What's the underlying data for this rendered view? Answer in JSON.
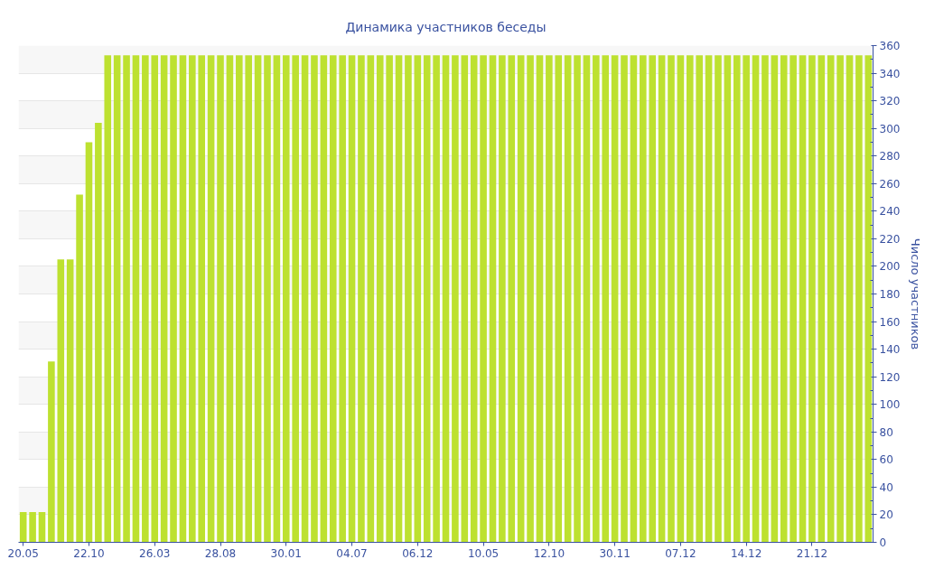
{
  "chart_data": {
    "type": "bar",
    "title": "Динамика участников беседы",
    "ylabel": "Число участников",
    "categories": [
      "20.05",
      null,
      null,
      null,
      null,
      null,
      null,
      "22.10",
      null,
      null,
      null,
      null,
      null,
      null,
      "26.03",
      null,
      null,
      null,
      null,
      null,
      null,
      "28.08",
      null,
      null,
      null,
      null,
      null,
      null,
      "30.01",
      null,
      null,
      null,
      null,
      null,
      null,
      "04.07",
      null,
      null,
      null,
      null,
      null,
      null,
      "06.12",
      null,
      null,
      null,
      null,
      null,
      null,
      "10.05",
      null,
      null,
      null,
      null,
      null,
      null,
      "12.10",
      null,
      null,
      null,
      null,
      null,
      null,
      "30.11",
      null,
      null,
      null,
      null,
      null,
      null,
      "07.12",
      null,
      null,
      null,
      null,
      null,
      null,
      "14.12",
      null,
      null,
      null,
      null,
      null,
      null,
      "21.12",
      null,
      null,
      null,
      null,
      null,
      null
    ],
    "values": [
      22,
      22,
      22,
      131,
      205,
      205,
      252,
      290,
      304,
      353,
      353,
      353,
      353,
      353,
      353,
      353,
      353,
      353,
      353,
      353,
      353,
      353,
      353,
      353,
      353,
      353,
      353,
      353,
      353,
      353,
      353,
      353,
      353,
      353,
      353,
      353,
      353,
      353,
      353,
      353,
      353,
      353,
      353,
      353,
      353,
      353,
      353,
      353,
      353,
      353,
      353,
      353,
      353,
      353,
      353,
      353,
      353,
      353,
      353,
      353,
      353,
      353,
      353,
      353,
      353,
      353,
      353,
      353,
      353,
      353,
      353,
      353,
      353,
      353,
      353,
      353,
      353,
      353,
      353,
      353,
      353,
      353,
      353,
      353,
      353,
      353,
      353,
      353,
      353,
      353,
      353
    ],
    "color": "#bde130",
    "ylim": [
      0,
      360
    ],
    "yticks": [
      0,
      {
        "value": 10,
        "label": null
      },
      20,
      {
        "value": 30,
        "label": null
      },
      40,
      {
        "value": 50,
        "label": null
      },
      60,
      {
        "value": 70,
        "label": null
      },
      80,
      {
        "value": 90,
        "label": null
      },
      100,
      {
        "value": 110,
        "label": null
      },
      120,
      {
        "value": 130,
        "label": null
      },
      140,
      {
        "value": 150,
        "label": null
      },
      160,
      {
        "value": 170,
        "label": null
      },
      180,
      {
        "value": 190,
        "label": null
      },
      200,
      {
        "value": 210,
        "label": null
      },
      220,
      {
        "value": 230,
        "label": null
      },
      240,
      {
        "value": 250,
        "label": null
      },
      260,
      {
        "value": 270,
        "label": null
      },
      280,
      {
        "value": 290,
        "label": null
      },
      300,
      {
        "value": 310,
        "label": null
      },
      320,
      {
        "value": 330,
        "label": null
      },
      340,
      {
        "value": 350,
        "label": null
      },
      360
    ],
    "grid": "y"
  }
}
